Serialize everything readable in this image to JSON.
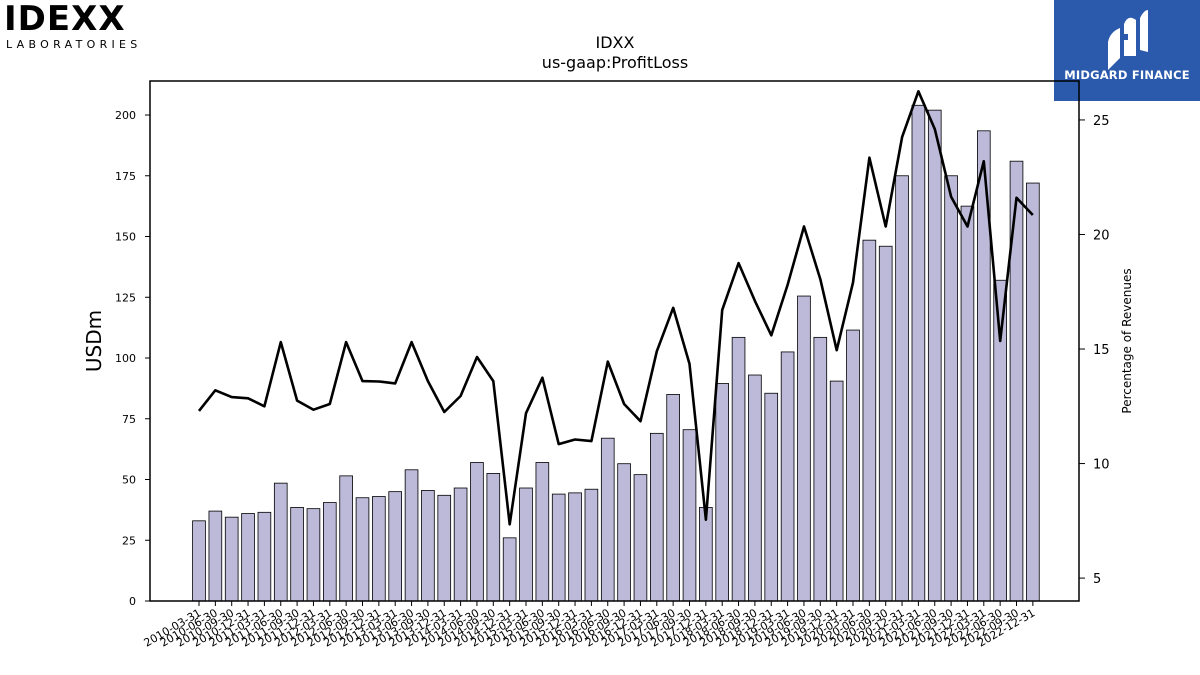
{
  "logos": {
    "idexx_word": "IDEXX",
    "idexx_sub": "LABORATORIES",
    "midgard_text": "MIDGARD FINANCE"
  },
  "chart_data": {
    "type": "bar",
    "title": "IDXX",
    "subtitle": "us-gaap:ProfitLoss",
    "ylabel": "USDm",
    "y2label": "Percentage of Revenues",
    "ylim": [
      0,
      214
    ],
    "y2lim": [
      4.0,
      26.7
    ],
    "yticks": [
      0,
      25,
      50,
      75,
      100,
      125,
      150,
      175,
      200
    ],
    "y2ticks": [
      5,
      10,
      15,
      20,
      25
    ],
    "bar_color": "#bcbad8",
    "line_color": "#000000",
    "categories": [
      "2010-03-31",
      "2010-06-30",
      "2010-09-30",
      "2010-12-31",
      "2011-03-31",
      "2011-06-30",
      "2011-09-30",
      "2011-12-31",
      "2012-03-31",
      "2012-06-30",
      "2012-09-30",
      "2012-12-31",
      "2013-03-31",
      "2013-06-30",
      "2013-09-30",
      "2013-12-31",
      "2014-03-31",
      "2014-06-30",
      "2014-09-30",
      "2014-12-31",
      "2015-03-31",
      "2015-06-30",
      "2015-09-30",
      "2015-12-31",
      "2016-03-31",
      "2016-06-30",
      "2016-09-30",
      "2016-12-31",
      "2017-03-31",
      "2017-06-30",
      "2017-09-30",
      "2017-12-31",
      "2018-03-31",
      "2018-06-30",
      "2018-09-30",
      "2018-12-31",
      "2019-03-31",
      "2019-06-30",
      "2019-09-30",
      "2019-12-31",
      "2020-03-31",
      "2020-06-30",
      "2020-09-30",
      "2020-12-31",
      "2021-03-31",
      "2021-06-30",
      "2021-09-30",
      "2021-12-31",
      "2022-03-31",
      "2022-06-30",
      "2022-09-30",
      "2022-12-31"
    ],
    "series": [
      {
        "values": [
          33,
          37,
          34.5,
          36,
          36.5,
          48.5,
          38.5,
          38,
          40.5,
          51.5,
          42.5,
          43,
          45,
          54,
          45.5,
          43.5,
          46.5,
          57,
          52.5,
          26,
          46.5,
          57,
          44,
          44.5,
          46,
          67,
          56.5,
          52,
          69,
          85,
          70.5,
          38.5,
          89.5,
          108.5,
          93,
          85.5,
          102.5,
          125.5,
          108.5,
          90.5,
          111.5,
          148.5,
          146,
          175,
          204,
          202,
          175,
          162.5,
          193.5,
          132,
          181,
          172
        ]
      },
      {
        "axis": "right",
        "values": [
          12.3,
          13.2,
          12.9,
          12.85,
          12.5,
          15.3,
          12.75,
          12.35,
          12.6,
          15.3,
          13.6,
          13.58,
          13.5,
          15.3,
          13.6,
          12.25,
          12.95,
          14.65,
          13.6,
          7.35,
          12.2,
          13.75,
          10.85,
          11.05,
          10.98,
          14.45,
          12.6,
          11.85,
          14.9,
          16.8,
          14.35,
          7.55,
          16.7,
          18.75,
          17.1,
          15.6,
          17.8,
          20.35,
          18.05,
          14.95,
          17.9,
          23.35,
          20.35,
          24.25,
          26.25,
          24.6,
          21.65,
          20.35,
          23.2,
          15.35,
          21.6,
          20.85
        ]
      }
    ],
    "grid": false
  }
}
